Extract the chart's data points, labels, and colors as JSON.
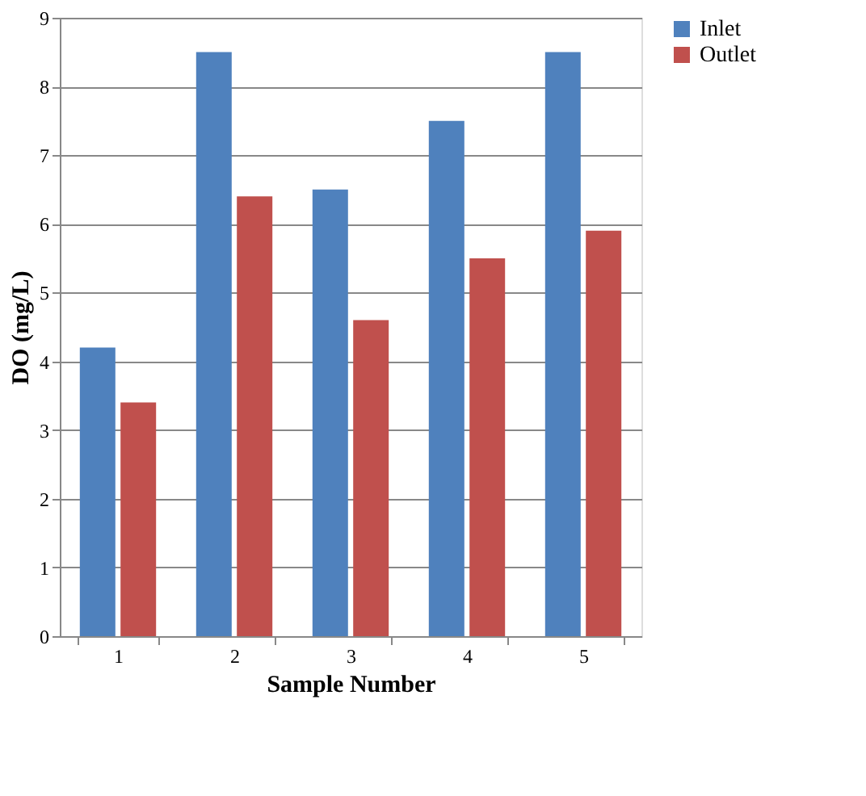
{
  "chart_data": {
    "type": "bar",
    "xlabel": "Sample Number",
    "ylabel": "DO (mg/L)",
    "categories": [
      "1",
      "2",
      "3",
      "4",
      "5"
    ],
    "series": [
      {
        "name": "Inlet",
        "color": "#4f81bd",
        "values": [
          4.2,
          8.5,
          6.5,
          7.5,
          8.5
        ]
      },
      {
        "name": "Outlet",
        "color": "#c0504d",
        "values": [
          3.4,
          6.4,
          4.6,
          5.5,
          5.9
        ]
      }
    ],
    "ylim": [
      0,
      9
    ],
    "yticks": [
      0,
      1,
      2,
      3,
      4,
      5,
      6,
      7,
      8,
      9
    ],
    "grid": "y",
    "legend": "right"
  }
}
